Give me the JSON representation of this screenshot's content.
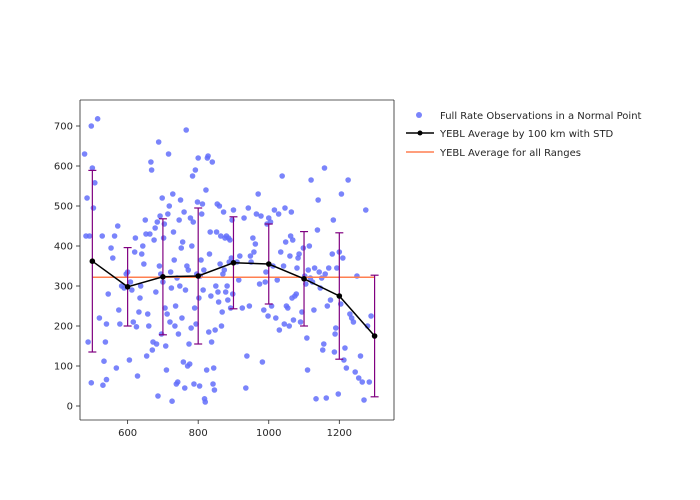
{
  "chart_data": {
    "type": "scatter",
    "title": "",
    "xlabel": "",
    "ylabel": "",
    "xlim": [
      465,
      1355
    ],
    "ylim": [
      -35,
      765
    ],
    "xticks": [
      600,
      800,
      1000,
      1200
    ],
    "yticks": [
      0,
      100,
      200,
      300,
      400,
      500,
      600,
      700
    ],
    "grid": false,
    "legend_position": "top-right-outside",
    "colors": {
      "scatter": "#636efa",
      "avg_line": "#000000",
      "errorbar": "#800080",
      "overall": "#ff7f50"
    },
    "series": [
      {
        "name": "Full Rate Observations in a Normal Point",
        "kind": "scatter",
        "points": [
          [
            478,
            630
          ],
          [
            482,
            425
          ],
          [
            485,
            520
          ],
          [
            488,
            160
          ],
          [
            492,
            425
          ],
          [
            497,
            700
          ],
          [
            500,
            595
          ],
          [
            503,
            495
          ],
          [
            497,
            58
          ],
          [
            507,
            558
          ],
          [
            515,
            718
          ],
          [
            520,
            220
          ],
          [
            528,
            425
          ],
          [
            530,
            52
          ],
          [
            533,
            112
          ],
          [
            537,
            160
          ],
          [
            540,
            66
          ],
          [
            540,
            205
          ],
          [
            545,
            280
          ],
          [
            553,
            395
          ],
          [
            558,
            370
          ],
          [
            563,
            425
          ],
          [
            568,
            95
          ],
          [
            572,
            450
          ],
          [
            575,
            240
          ],
          [
            578,
            205
          ],
          [
            583,
            300
          ],
          [
            590,
            295
          ],
          [
            596,
            330
          ],
          [
            600,
            335
          ],
          [
            605,
            115
          ],
          [
            608,
            310
          ],
          [
            612,
            290
          ],
          [
            616,
            210
          ],
          [
            620,
            385
          ],
          [
            622,
            420
          ],
          [
            625,
            198
          ],
          [
            628,
            75
          ],
          [
            632,
            235
          ],
          [
            635,
            270
          ],
          [
            637,
            300
          ],
          [
            640,
            380
          ],
          [
            643,
            400
          ],
          [
            646,
            355
          ],
          [
            650,
            465
          ],
          [
            652,
            430
          ],
          [
            654,
            125
          ],
          [
            657,
            230
          ],
          [
            660,
            200
          ],
          [
            663,
            430
          ],
          [
            666,
            610
          ],
          [
            668,
            590
          ],
          [
            670,
            140
          ],
          [
            672,
            160
          ],
          [
            675,
            415
          ],
          [
            678,
            445
          ],
          [
            680,
            285
          ],
          [
            682,
            155
          ],
          [
            684,
            460
          ],
          [
            686,
            25
          ],
          [
            688,
            660
          ],
          [
            690,
            350
          ],
          [
            692,
            475
          ],
          [
            694,
            330
          ],
          [
            696,
            180
          ],
          [
            698,
            520
          ],
          [
            700,
            310
          ],
          [
            702,
            420
          ],
          [
            704,
            455
          ],
          [
            706,
            245
          ],
          [
            708,
            150
          ],
          [
            710,
            90
          ],
          [
            712,
            230
          ],
          [
            714,
            480
          ],
          [
            716,
            630
          ],
          [
            718,
            500
          ],
          [
            720,
            210
          ],
          [
            722,
            335
          ],
          [
            724,
            295
          ],
          [
            726,
            12
          ],
          [
            728,
            530
          ],
          [
            730,
            435
          ],
          [
            732,
            365
          ],
          [
            734,
            200
          ],
          [
            736,
            250
          ],
          [
            738,
            55
          ],
          [
            740,
            320
          ],
          [
            742,
            60
          ],
          [
            744,
            180
          ],
          [
            746,
            465
          ],
          [
            748,
            300
          ],
          [
            750,
            515
          ],
          [
            752,
            395
          ],
          [
            754,
            220
          ],
          [
            756,
            410
          ],
          [
            758,
            110
          ],
          [
            760,
            485
          ],
          [
            762,
            45
          ],
          [
            764,
            290
          ],
          [
            766,
            690
          ],
          [
            768,
            350
          ],
          [
            770,
            100
          ],
          [
            772,
            340
          ],
          [
            774,
            155
          ],
          [
            776,
            105
          ],
          [
            778,
            470
          ],
          [
            780,
            195
          ],
          [
            782,
            400
          ],
          [
            784,
            575
          ],
          [
            786,
            460
          ],
          [
            788,
            55
          ],
          [
            790,
            245
          ],
          [
            792,
            590
          ],
          [
            794,
            205
          ],
          [
            796,
            330
          ],
          [
            798,
            510
          ],
          [
            800,
            620
          ],
          [
            802,
            270
          ],
          [
            804,
            50
          ],
          [
            806,
            325
          ],
          [
            808,
            365
          ],
          [
            810,
            480
          ],
          [
            812,
            505
          ],
          [
            814,
            290
          ],
          [
            816,
            340
          ],
          [
            818,
            18
          ],
          [
            820,
            10
          ],
          [
            822,
            540
          ],
          [
            824,
            90
          ],
          [
            826,
            620
          ],
          [
            828,
            625
          ],
          [
            830,
            185
          ],
          [
            832,
            380
          ],
          [
            834,
            435
          ],
          [
            836,
            275
          ],
          [
            838,
            160
          ],
          [
            840,
            610
          ],
          [
            842,
            55
          ],
          [
            844,
            95
          ],
          [
            846,
            40
          ],
          [
            848,
            190
          ],
          [
            850,
            300
          ],
          [
            852,
            435
          ],
          [
            854,
            505
          ],
          [
            856,
            285
          ],
          [
            858,
            260
          ],
          [
            860,
            500
          ],
          [
            862,
            355
          ],
          [
            864,
            425
          ],
          [
            866,
            200
          ],
          [
            868,
            235
          ],
          [
            870,
            330
          ],
          [
            872,
            485
          ],
          [
            874,
            340
          ],
          [
            876,
            420
          ],
          [
            878,
            285
          ],
          [
            880,
            425
          ],
          [
            882,
            300
          ],
          [
            884,
            265
          ],
          [
            886,
            420
          ],
          [
            888,
            360
          ],
          [
            890,
            415
          ],
          [
            892,
            245
          ],
          [
            894,
            370
          ],
          [
            896,
            465
          ],
          [
            898,
            280
          ],
          [
            900,
            490
          ],
          [
            910,
            360
          ],
          [
            915,
            315
          ],
          [
            918,
            375
          ],
          [
            925,
            245
          ],
          [
            930,
            470
          ],
          [
            935,
            45
          ],
          [
            938,
            125
          ],
          [
            942,
            495
          ],
          [
            945,
            250
          ],
          [
            948,
            375
          ],
          [
            950,
            360
          ],
          [
            955,
            420
          ],
          [
            958,
            385
          ],
          [
            962,
            405
          ],
          [
            965,
            480
          ],
          [
            970,
            530
          ],
          [
            974,
            305
          ],
          [
            978,
            475
          ],
          [
            982,
            110
          ],
          [
            986,
            240
          ],
          [
            990,
            310
          ],
          [
            992,
            335
          ],
          [
            995,
            455
          ],
          [
            998,
            225
          ],
          [
            1000,
            470
          ],
          [
            1005,
            460
          ],
          [
            1008,
            250
          ],
          [
            1012,
            350
          ],
          [
            1016,
            490
          ],
          [
            1020,
            220
          ],
          [
            1024,
            315
          ],
          [
            1028,
            480
          ],
          [
            1030,
            190
          ],
          [
            1034,
            385
          ],
          [
            1038,
            575
          ],
          [
            1042,
            350
          ],
          [
            1044,
            205
          ],
          [
            1046,
            495
          ],
          [
            1048,
            410
          ],
          [
            1050,
            250
          ],
          [
            1054,
            245
          ],
          [
            1058,
            200
          ],
          [
            1060,
            375
          ],
          [
            1062,
            425
          ],
          [
            1064,
            485
          ],
          [
            1066,
            270
          ],
          [
            1068,
            415
          ],
          [
            1070,
            215
          ],
          [
            1074,
            275
          ],
          [
            1078,
            280
          ],
          [
            1080,
            345
          ],
          [
            1083,
            370
          ],
          [
            1086,
            380
          ],
          [
            1090,
            210
          ],
          [
            1094,
            235
          ],
          [
            1098,
            395
          ],
          [
            1102,
            325
          ],
          [
            1105,
            305
          ],
          [
            1108,
            170
          ],
          [
            1110,
            90
          ],
          [
            1112,
            340
          ],
          [
            1115,
            400
          ],
          [
            1118,
            320
          ],
          [
            1120,
            565
          ],
          [
            1124,
            310
          ],
          [
            1128,
            240
          ],
          [
            1130,
            345
          ],
          [
            1134,
            18
          ],
          [
            1138,
            440
          ],
          [
            1140,
            515
          ],
          [
            1143,
            335
          ],
          [
            1146,
            295
          ],
          [
            1150,
            320
          ],
          [
            1153,
            140
          ],
          [
            1156,
            155
          ],
          [
            1158,
            595
          ],
          [
            1160,
            330
          ],
          [
            1163,
            20
          ],
          [
            1166,
            250
          ],
          [
            1170,
            345
          ],
          [
            1175,
            265
          ],
          [
            1180,
            380
          ],
          [
            1183,
            465
          ],
          [
            1186,
            135
          ],
          [
            1188,
            180
          ],
          [
            1190,
            195
          ],
          [
            1193,
            345
          ],
          [
            1197,
            30
          ],
          [
            1200,
            385
          ],
          [
            1204,
            255
          ],
          [
            1206,
            530
          ],
          [
            1210,
            370
          ],
          [
            1213,
            115
          ],
          [
            1216,
            145
          ],
          [
            1220,
            95
          ],
          [
            1225,
            565
          ],
          [
            1230,
            230
          ],
          [
            1235,
            220
          ],
          [
            1240,
            210
          ],
          [
            1245,
            85
          ],
          [
            1250,
            325
          ],
          [
            1255,
            70
          ],
          [
            1260,
            125
          ],
          [
            1265,
            60
          ],
          [
            1270,
            15
          ],
          [
            1275,
            490
          ],
          [
            1280,
            200
          ],
          [
            1285,
            60
          ],
          [
            1290,
            225
          ]
        ]
      },
      {
        "name": "YEBL Average by 100 km with STD",
        "kind": "line-errorbar",
        "x": [
          500,
          600,
          700,
          800,
          900,
          1000,
          1100,
          1200,
          1300
        ],
        "y": [
          362,
          298,
          323,
          325,
          358,
          355,
          318,
          275,
          175
        ],
        "std": [
          227,
          98,
          145,
          170,
          115,
          100,
          118,
          158,
          152
        ]
      },
      {
        "name": "YEBL Average for all Ranges",
        "kind": "hline",
        "y": 322,
        "x_range": [
          500,
          1300
        ]
      }
    ]
  }
}
